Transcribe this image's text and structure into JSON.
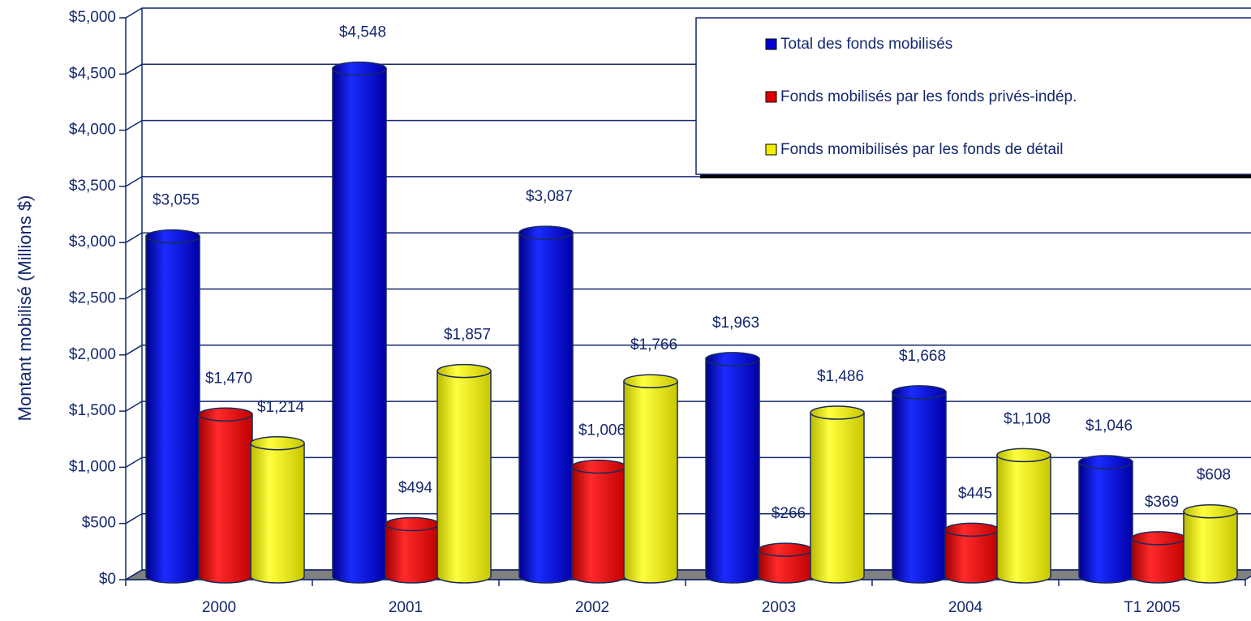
{
  "chart_data": {
    "type": "bar",
    "y_label": "Montant mobilisé (Millions $)",
    "categories": [
      "2000",
      "2001",
      "2002",
      "2003",
      "2004",
      "T1 2005"
    ],
    "series": [
      {
        "name": "Total des fonds mobilisés",
        "color": "#0000d0",
        "values": [
          3055,
          4548,
          3087,
          1963,
          1668,
          1046
        ],
        "value_labels": [
          "$3,055",
          "$4,548",
          "$3,087",
          "$1,963",
          "$1,668",
          "$1,046"
        ]
      },
      {
        "name": "Fonds mobilisés par les fonds privés-indép.",
        "color": "#e00000",
        "values": [
          1470,
          494,
          1006,
          266,
          445,
          369
        ],
        "value_labels": [
          "$1,470",
          "$494",
          "$1,006",
          "$266",
          "$445",
          "$369"
        ]
      },
      {
        "name": "Fonds momibilisés par les fonds de détail",
        "color": "#f0f000",
        "values": [
          1214,
          1857,
          1766,
          1486,
          1108,
          608
        ],
        "value_labels": [
          "$1,214",
          "$1,857",
          "$1,766",
          "$1,486",
          "$1,108",
          "$608"
        ]
      }
    ],
    "ylim": [
      0,
      5000
    ],
    "yticks": [
      {
        "value": 0,
        "label": "$0"
      },
      {
        "value": 500,
        "label": "$500"
      },
      {
        "value": 1000,
        "label": "$1,000"
      },
      {
        "value": 1500,
        "label": "$1,500"
      },
      {
        "value": 2000,
        "label": "$2,000"
      },
      {
        "value": 2500,
        "label": "$2,500"
      },
      {
        "value": 3000,
        "label": "$3,000"
      },
      {
        "value": 3500,
        "label": "$3,500"
      },
      {
        "value": 4000,
        "label": "$4,000"
      },
      {
        "value": 4500,
        "label": "$4,500"
      },
      {
        "value": 5000,
        "label": "$5,000"
      }
    ],
    "grid": true
  }
}
